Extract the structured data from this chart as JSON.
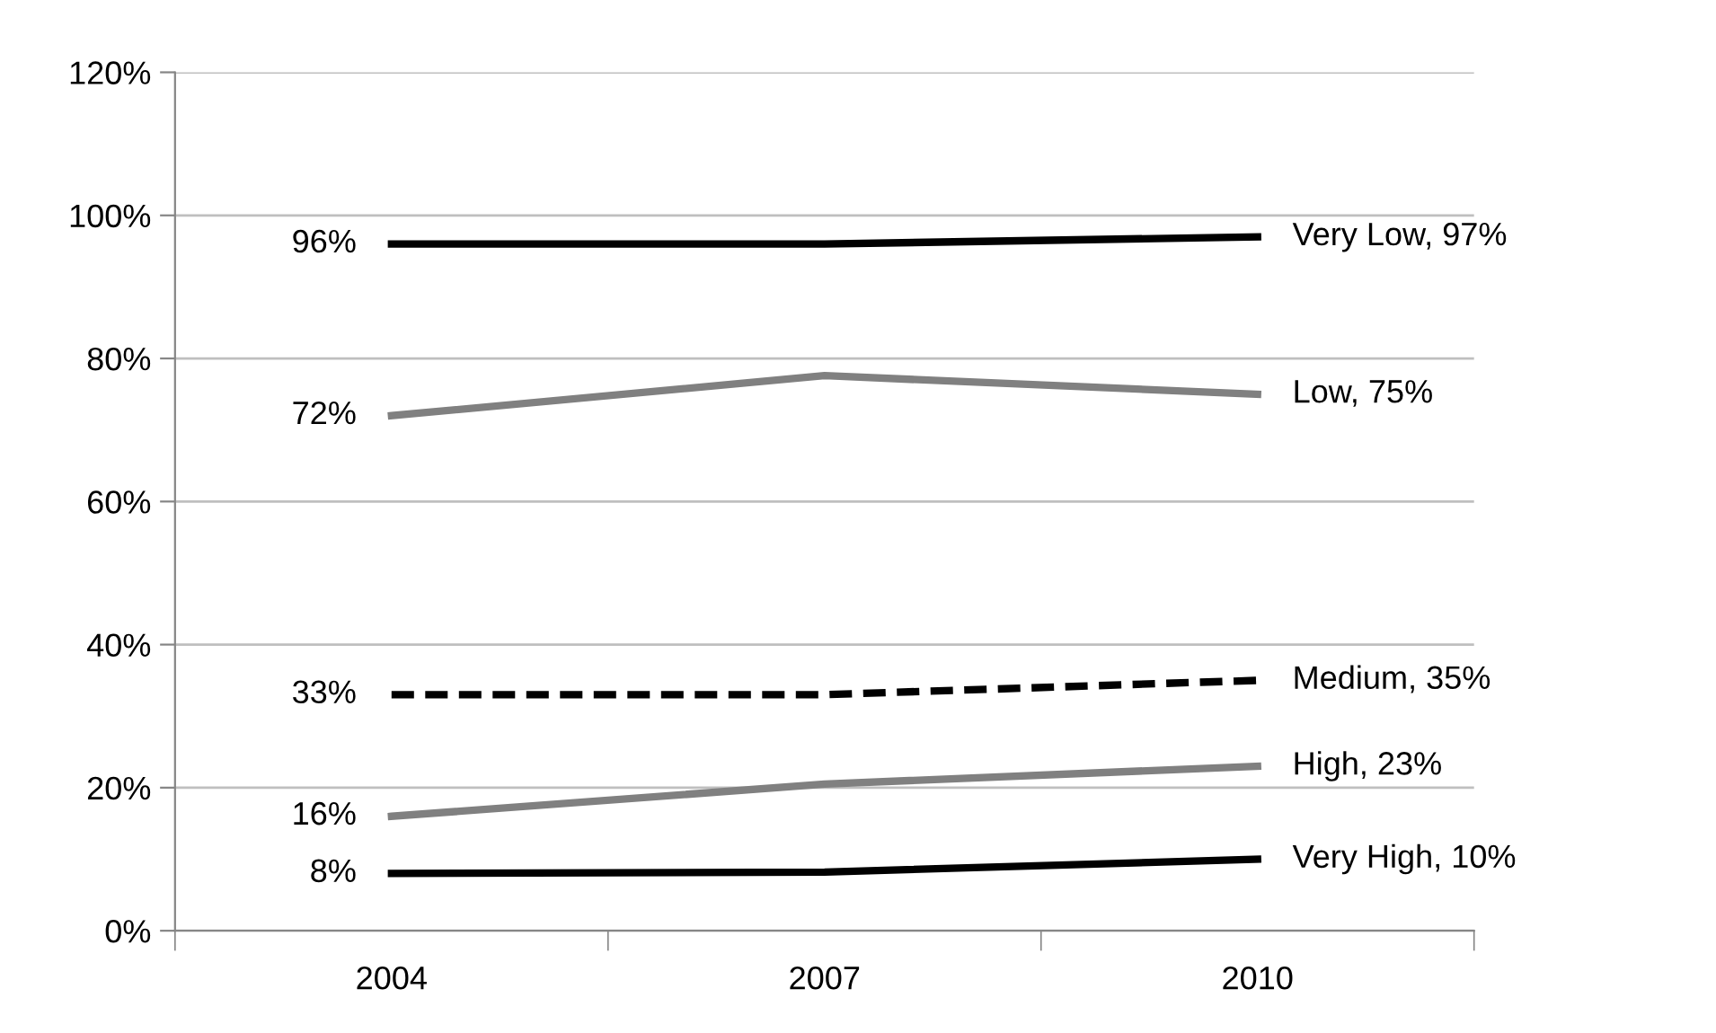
{
  "chart_data": {
    "type": "line",
    "categories": [
      "2004",
      "2007",
      "2010"
    ],
    "ylim": [
      0,
      120
    ],
    "yticks": [
      {
        "value": 0,
        "label": "0%"
      },
      {
        "value": 20,
        "label": "20%"
      },
      {
        "value": 40,
        "label": "40%"
      },
      {
        "value": 60,
        "label": "60%"
      },
      {
        "value": 80,
        "label": "80%"
      },
      {
        "value": 100,
        "label": "100%"
      },
      {
        "value": 120,
        "label": "120%"
      }
    ],
    "grid": "y",
    "legend": false,
    "marker": "none",
    "series": [
      {
        "color": "#000000",
        "line_style": "solid",
        "values": [
          96,
          96,
          97
        ],
        "value_labels": [
          "96%",
          null,
          "Very Low, 97%"
        ]
      },
      {
        "color": "#808080",
        "line_style": "solid",
        "values": [
          72,
          77.6,
          75
        ],
        "value_labels": [
          "72%",
          null,
          "Low, 75%"
        ]
      },
      {
        "color": "#000000",
        "line_style": "dashed",
        "values": [
          33,
          33,
          35
        ],
        "value_labels": [
          "33%",
          null,
          "Medium, 35%"
        ]
      },
      {
        "color": "#808080",
        "line_style": "solid",
        "values": [
          16,
          20.5,
          23
        ],
        "value_labels": [
          "16%",
          null,
          "High, 23%"
        ]
      },
      {
        "color": "#000000",
        "line_style": "solid",
        "values": [
          8,
          8.2,
          10
        ],
        "value_labels": [
          "8%",
          null,
          "Very High, 10%"
        ]
      }
    ]
  }
}
